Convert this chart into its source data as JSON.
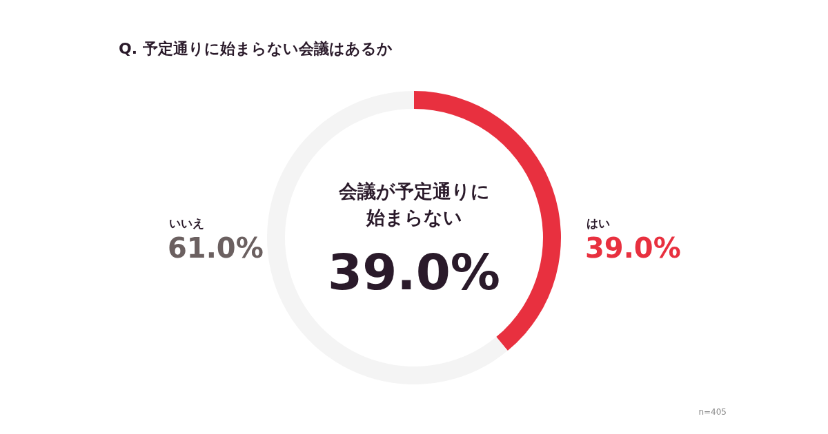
{
  "chart_data": {
    "type": "donut",
    "title": "Q. 予定通りに始まらない会議はあるか",
    "categories": [
      "はい",
      "いいえ"
    ],
    "values": [
      39.0,
      61.0
    ],
    "colors": [
      "#e8303f",
      "#f4f4f4"
    ],
    "value_labels": [
      "39.0%",
      "61.0%"
    ],
    "annotations": [
      "会議が予定通りに",
      "始まらない",
      "39.0%",
      "n=405"
    ]
  }
}
